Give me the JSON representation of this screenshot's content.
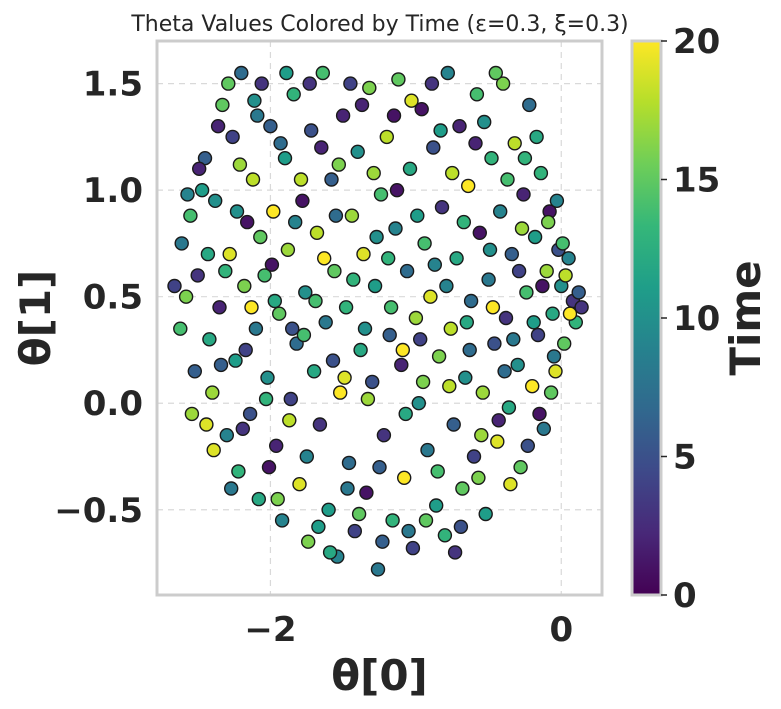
{
  "chart_data": {
    "type": "scatter",
    "title": "Theta Values Colored by Time (ε=0.3, ξ=0.3)",
    "xlabel": "θ[0]",
    "ylabel": "θ[1]",
    "xlim": [
      -2.78,
      0.28
    ],
    "ylim": [
      -0.9,
      1.7
    ],
    "xticks": [
      -2,
      0
    ],
    "xtick_labels": [
      "−2",
      "0"
    ],
    "yticks": [
      -0.5,
      0.0,
      0.5,
      1.0,
      1.5
    ],
    "ytick_labels": [
      "−0.5",
      "0.0",
      "0.5",
      "1.0",
      "1.5"
    ],
    "grid": true,
    "colorbar": {
      "label": "Time",
      "range": [
        0,
        20
      ],
      "ticks": [
        0,
        5,
        10,
        15,
        20
      ],
      "tick_labels": [
        "0",
        "5",
        "10",
        "15",
        "20"
      ],
      "colormap": "viridis",
      "stops": [
        "#440154",
        "#482878",
        "#3e4989",
        "#31688e",
        "#26828e",
        "#1f9e89",
        "#35b779",
        "#6ece58",
        "#b5de2b",
        "#fde725"
      ]
    },
    "marker": {
      "edge_color": "#1a1a1a"
    },
    "points": [
      {
        "x": -2.61,
        "y": 0.75,
        "t": 8
      },
      {
        "x": -2.55,
        "y": 0.88,
        "t": 14
      },
      {
        "x": -2.5,
        "y": 0.6,
        "t": 3
      },
      {
        "x": -2.45,
        "y": 1.15,
        "t": 6
      },
      {
        "x": -2.42,
        "y": 0.3,
        "t": 12
      },
      {
        "x": -2.4,
        "y": 0.05,
        "t": 17
      },
      {
        "x": -2.38,
        "y": 0.95,
        "t": 10
      },
      {
        "x": -2.35,
        "y": 0.45,
        "t": 2
      },
      {
        "x": -2.33,
        "y": 1.4,
        "t": 15
      },
      {
        "x": -2.3,
        "y": -0.15,
        "t": 9
      },
      {
        "x": -2.28,
        "y": 0.7,
        "t": 19
      },
      {
        "x": -2.26,
        "y": 1.25,
        "t": 4
      },
      {
        "x": -2.24,
        "y": 0.2,
        "t": 11
      },
      {
        "x": -2.22,
        "y": -0.32,
        "t": 13
      },
      {
        "x": -2.2,
        "y": 1.55,
        "t": 7
      },
      {
        "x": -2.18,
        "y": 0.55,
        "t": 16
      },
      {
        "x": -2.16,
        "y": 0.85,
        "t": 1
      },
      {
        "x": -2.14,
        "y": -0.05,
        "t": 5
      },
      {
        "x": -2.12,
        "y": 1.05,
        "t": 18
      },
      {
        "x": -2.1,
        "y": 0.35,
        "t": 8
      },
      {
        "x": -2.08,
        "y": -0.45,
        "t": 12
      },
      {
        "x": -2.06,
        "y": 1.5,
        "t": 3
      },
      {
        "x": -2.04,
        "y": 0.6,
        "t": 14
      },
      {
        "x": -2.02,
        "y": 0.12,
        "t": 10
      },
      {
        "x": -2.0,
        "y": 1.3,
        "t": 6
      },
      {
        "x": -1.98,
        "y": 0.9,
        "t": 20
      },
      {
        "x": -1.96,
        "y": -0.2,
        "t": 2
      },
      {
        "x": -1.94,
        "y": 0.42,
        "t": 15
      },
      {
        "x": -1.92,
        "y": -0.55,
        "t": 9
      },
      {
        "x": -1.9,
        "y": 1.15,
        "t": 11
      },
      {
        "x": -1.88,
        "y": 0.72,
        "t": 17
      },
      {
        "x": -1.86,
        "y": 0.02,
        "t": 4
      },
      {
        "x": -1.84,
        "y": 1.45,
        "t": 13
      },
      {
        "x": -1.82,
        "y": 0.28,
        "t": 7
      },
      {
        "x": -1.8,
        "y": -0.38,
        "t": 19
      },
      {
        "x": -1.78,
        "y": 0.95,
        "t": 1
      },
      {
        "x": -1.76,
        "y": 0.52,
        "t": 10
      },
      {
        "x": -1.74,
        "y": -0.65,
        "t": 16
      },
      {
        "x": -1.72,
        "y": 1.28,
        "t": 5
      },
      {
        "x": -1.7,
        "y": 0.15,
        "t": 12
      },
      {
        "x": -1.68,
        "y": 0.8,
        "t": 18
      },
      {
        "x": -1.66,
        "y": -0.1,
        "t": 3
      },
      {
        "x": -1.64,
        "y": 1.55,
        "t": 14
      },
      {
        "x": -1.62,
        "y": 0.38,
        "t": 8
      },
      {
        "x": -1.6,
        "y": -0.5,
        "t": 11
      },
      {
        "x": -1.58,
        "y": 1.05,
        "t": 6
      },
      {
        "x": -1.56,
        "y": 0.62,
        "t": 15
      },
      {
        "x": -1.54,
        "y": -0.72,
        "t": 9
      },
      {
        "x": -1.52,
        "y": 0.05,
        "t": 20
      },
      {
        "x": -1.5,
        "y": 1.35,
        "t": 2
      },
      {
        "x": -1.48,
        "y": 0.45,
        "t": 13
      },
      {
        "x": -1.46,
        "y": -0.28,
        "t": 7
      },
      {
        "x": -1.44,
        "y": 0.88,
        "t": 17
      },
      {
        "x": -1.42,
        "y": -0.6,
        "t": 4
      },
      {
        "x": -1.4,
        "y": 1.18,
        "t": 10
      },
      {
        "x": -1.38,
        "y": 0.25,
        "t": 12
      },
      {
        "x": -1.36,
        "y": 0.7,
        "t": 19
      },
      {
        "x": -1.34,
        "y": -0.42,
        "t": 1
      },
      {
        "x": -1.32,
        "y": 1.48,
        "t": 16
      },
      {
        "x": -1.3,
        "y": 0.1,
        "t": 5
      },
      {
        "x": -1.28,
        "y": 0.55,
        "t": 11
      },
      {
        "x": -1.26,
        "y": -0.78,
        "t": 8
      },
      {
        "x": -1.24,
        "y": 0.98,
        "t": 14
      },
      {
        "x": -1.22,
        "y": -0.15,
        "t": 3
      },
      {
        "x": -1.2,
        "y": 1.25,
        "t": 18
      },
      {
        "x": -1.18,
        "y": 0.32,
        "t": 6
      },
      {
        "x": -1.16,
        "y": -0.55,
        "t": 13
      },
      {
        "x": -1.14,
        "y": 0.82,
        "t": 9
      },
      {
        "x": -1.12,
        "y": 1.52,
        "t": 15
      },
      {
        "x": -1.1,
        "y": 0.18,
        "t": 2
      },
      {
        "x": -1.08,
        "y": -0.35,
        "t": 20
      },
      {
        "x": -1.06,
        "y": 0.62,
        "t": 7
      },
      {
        "x": -1.04,
        "y": 1.1,
        "t": 12
      },
      {
        "x": -1.02,
        "y": -0.68,
        "t": 4
      },
      {
        "x": -1.0,
        "y": 0.4,
        "t": 17
      },
      {
        "x": -0.98,
        "y": 0.0,
        "t": 10
      },
      {
        "x": -0.96,
        "y": 1.38,
        "t": 1
      },
      {
        "x": -0.94,
        "y": 0.75,
        "t": 14
      },
      {
        "x": -0.92,
        "y": -0.22,
        "t": 8
      },
      {
        "x": -0.9,
        "y": 0.5,
        "t": 19
      },
      {
        "x": -0.88,
        "y": 1.2,
        "t": 5
      },
      {
        "x": -0.86,
        "y": -0.48,
        "t": 11
      },
      {
        "x": -0.84,
        "y": 0.22,
        "t": 16
      },
      {
        "x": -0.82,
        "y": 0.92,
        "t": 3
      },
      {
        "x": -0.8,
        "y": -0.62,
        "t": 13
      },
      {
        "x": -0.78,
        "y": 1.55,
        "t": 9
      },
      {
        "x": -0.76,
        "y": 0.35,
        "t": 18
      },
      {
        "x": -0.74,
        "y": -0.1,
        "t": 6
      },
      {
        "x": -0.72,
        "y": 0.68,
        "t": 12
      },
      {
        "x": -0.7,
        "y": 1.3,
        "t": 2
      },
      {
        "x": -0.68,
        "y": -0.4,
        "t": 15
      },
      {
        "x": -0.66,
        "y": 0.12,
        "t": 10
      },
      {
        "x": -0.64,
        "y": 1.02,
        "t": 20
      },
      {
        "x": -0.62,
        "y": 0.48,
        "t": 7
      },
      {
        "x": -0.6,
        "y": -0.25,
        "t": 4
      },
      {
        "x": -0.58,
        "y": 1.45,
        "t": 14
      },
      {
        "x": -0.56,
        "y": 0.8,
        "t": 1
      },
      {
        "x": -0.54,
        "y": 0.05,
        "t": 17
      },
      {
        "x": -0.52,
        "y": -0.52,
        "t": 11
      },
      {
        "x": -0.5,
        "y": 0.58,
        "t": 8
      },
      {
        "x": -0.48,
        "y": 1.15,
        "t": 13
      },
      {
        "x": -0.46,
        "y": 0.28,
        "t": 5
      },
      {
        "x": -0.44,
        "y": -0.18,
        "t": 19
      },
      {
        "x": -0.42,
        "y": 0.9,
        "t": 9
      },
      {
        "x": -0.4,
        "y": 1.5,
        "t": 16
      },
      {
        "x": -0.38,
        "y": 0.4,
        "t": 3
      },
      {
        "x": -0.36,
        "y": -0.02,
        "t": 12
      },
      {
        "x": -0.34,
        "y": 0.7,
        "t": 6
      },
      {
        "x": -0.32,
        "y": 1.22,
        "t": 18
      },
      {
        "x": -0.3,
        "y": 0.18,
        "t": 10
      },
      {
        "x": -0.28,
        "y": -0.3,
        "t": 15
      },
      {
        "x": -0.26,
        "y": 0.98,
        "t": 2
      },
      {
        "x": -0.24,
        "y": 0.52,
        "t": 14
      },
      {
        "x": -0.22,
        "y": 1.4,
        "t": 7
      },
      {
        "x": -0.2,
        "y": 0.08,
        "t": 20
      },
      {
        "x": -0.18,
        "y": 0.78,
        "t": 11
      },
      {
        "x": -0.16,
        "y": 0.32,
        "t": 4
      },
      {
        "x": -0.14,
        "y": 1.08,
        "t": 13
      },
      {
        "x": -0.12,
        "y": -0.12,
        "t": 8
      },
      {
        "x": -0.1,
        "y": 0.62,
        "t": 17
      },
      {
        "x": -0.08,
        "y": 0.9,
        "t": 1
      },
      {
        "x": -0.06,
        "y": 0.42,
        "t": 12
      },
      {
        "x": -0.04,
        "y": 0.15,
        "t": 19
      },
      {
        "x": -0.02,
        "y": 0.72,
        "t": 5
      },
      {
        "x": 0.0,
        "y": 0.55,
        "t": 10
      },
      {
        "x": 0.02,
        "y": 0.28,
        "t": 15
      },
      {
        "x": 0.05,
        "y": 0.68,
        "t": 9
      },
      {
        "x": 0.08,
        "y": 0.48,
        "t": 3
      },
      {
        "x": 0.1,
        "y": 0.38,
        "t": 13
      },
      {
        "x": -2.58,
        "y": 0.5,
        "t": 16
      },
      {
        "x": -2.52,
        "y": 0.15,
        "t": 6
      },
      {
        "x": -2.47,
        "y": 1.0,
        "t": 11
      },
      {
        "x": -2.44,
        "y": -0.1,
        "t": 19
      },
      {
        "x": -2.36,
        "y": 1.3,
        "t": 2
      },
      {
        "x": -2.31,
        "y": 0.62,
        "t": 13
      },
      {
        "x": -2.27,
        "y": -0.4,
        "t": 8
      },
      {
        "x": -2.21,
        "y": 1.12,
        "t": 17
      },
      {
        "x": -2.17,
        "y": 0.25,
        "t": 4
      },
      {
        "x": -2.11,
        "y": 1.42,
        "t": 10
      },
      {
        "x": -2.07,
        "y": 0.78,
        "t": 15
      },
      {
        "x": -2.01,
        "y": -0.3,
        "t": 1
      },
      {
        "x": -1.97,
        "y": 0.48,
        "t": 12
      },
      {
        "x": -1.93,
        "y": 1.22,
        "t": 7
      },
      {
        "x": -1.87,
        "y": -0.08,
        "t": 18
      },
      {
        "x": -1.83,
        "y": 0.85,
        "t": 9
      },
      {
        "x": -1.77,
        "y": 0.32,
        "t": 14
      },
      {
        "x": -1.73,
        "y": 1.5,
        "t": 3
      },
      {
        "x": -1.67,
        "y": -0.58,
        "t": 11
      },
      {
        "x": -1.63,
        "y": 0.68,
        "t": 20
      },
      {
        "x": -1.57,
        "y": 0.2,
        "t": 5
      },
      {
        "x": -1.53,
        "y": 1.12,
        "t": 16
      },
      {
        "x": -1.47,
        "y": -0.4,
        "t": 8
      },
      {
        "x": -1.43,
        "y": 0.58,
        "t": 13
      },
      {
        "x": -1.37,
        "y": 1.4,
        "t": 2
      },
      {
        "x": -1.33,
        "y": 0.02,
        "t": 17
      },
      {
        "x": -1.27,
        "y": 0.78,
        "t": 10
      },
      {
        "x": -1.23,
        "y": -0.65,
        "t": 6
      },
      {
        "x": -1.17,
        "y": 0.45,
        "t": 14
      },
      {
        "x": -1.13,
        "y": 1.0,
        "t": 1
      },
      {
        "x": -1.07,
        "y": -0.05,
        "t": 12
      },
      {
        "x": -1.03,
        "y": 1.42,
        "t": 19
      },
      {
        "x": -0.97,
        "y": 0.3,
        "t": 4
      },
      {
        "x": -0.93,
        "y": -0.55,
        "t": 15
      },
      {
        "x": -0.87,
        "y": 0.65,
        "t": 9
      },
      {
        "x": -0.83,
        "y": 1.28,
        "t": 11
      },
      {
        "x": -0.77,
        "y": 0.08,
        "t": 18
      },
      {
        "x": -0.73,
        "y": -0.7,
        "t": 3
      },
      {
        "x": -0.67,
        "y": 0.85,
        "t": 13
      },
      {
        "x": -0.63,
        "y": 0.25,
        "t": 7
      },
      {
        "x": -0.57,
        "y": -0.35,
        "t": 16
      },
      {
        "x": -0.53,
        "y": 1.32,
        "t": 10
      },
      {
        "x": -0.47,
        "y": 0.45,
        "t": 20
      },
      {
        "x": -0.43,
        "y": -0.08,
        "t": 2
      },
      {
        "x": -0.37,
        "y": 1.05,
        "t": 14
      },
      {
        "x": -0.33,
        "y": 0.3,
        "t": 8
      },
      {
        "x": -0.27,
        "y": 0.82,
        "t": 17
      },
      {
        "x": -0.23,
        "y": -0.2,
        "t": 5
      },
      {
        "x": -0.17,
        "y": 1.25,
        "t": 12
      },
      {
        "x": -0.13,
        "y": 0.55,
        "t": 1
      },
      {
        "x": -0.07,
        "y": 0.05,
        "t": 15
      },
      {
        "x": -0.03,
        "y": 0.95,
        "t": 9
      },
      {
        "x": 0.03,
        "y": 0.6,
        "t": 18
      },
      {
        "x": 0.12,
        "y": 0.52,
        "t": 6
      },
      {
        "x": -2.66,
        "y": 0.55,
        "t": 4
      },
      {
        "x": -2.62,
        "y": 0.35,
        "t": 14
      },
      {
        "x": -2.57,
        "y": 0.98,
        "t": 9
      },
      {
        "x": -2.54,
        "y": -0.05,
        "t": 17
      },
      {
        "x": -2.49,
        "y": 1.1,
        "t": 2
      },
      {
        "x": -2.43,
        "y": 0.7,
        "t": 12
      },
      {
        "x": -2.39,
        "y": -0.22,
        "t": 19
      },
      {
        "x": -2.34,
        "y": 0.18,
        "t": 6
      },
      {
        "x": -2.29,
        "y": 1.5,
        "t": 15
      },
      {
        "x": -2.23,
        "y": 0.9,
        "t": 10
      },
      {
        "x": -2.19,
        "y": -0.12,
        "t": 3
      },
      {
        "x": -2.13,
        "y": 0.45,
        "t": 20
      },
      {
        "x": -2.09,
        "y": 1.35,
        "t": 8
      },
      {
        "x": -2.03,
        "y": 0.02,
        "t": 13
      },
      {
        "x": -1.99,
        "y": 0.65,
        "t": 1
      },
      {
        "x": -1.95,
        "y": -0.45,
        "t": 16
      },
      {
        "x": -1.89,
        "y": 1.55,
        "t": 11
      },
      {
        "x": -1.85,
        "y": 0.35,
        "t": 5
      },
      {
        "x": -1.79,
        "y": 1.05,
        "t": 18
      },
      {
        "x": -1.75,
        "y": -0.25,
        "t": 9
      },
      {
        "x": -1.69,
        "y": 0.48,
        "t": 14
      },
      {
        "x": -1.65,
        "y": 1.2,
        "t": 2
      },
      {
        "x": -1.59,
        "y": -0.7,
        "t": 12
      },
      {
        "x": -1.55,
        "y": 0.88,
        "t": 7
      },
      {
        "x": -1.49,
        "y": 0.12,
        "t": 19
      },
      {
        "x": -1.45,
        "y": 1.5,
        "t": 4
      },
      {
        "x": -1.39,
        "y": -0.52,
        "t": 15
      },
      {
        "x": -1.35,
        "y": 0.35,
        "t": 10
      },
      {
        "x": -1.29,
        "y": 1.08,
        "t": 17
      },
      {
        "x": -1.25,
        "y": -0.3,
        "t": 6
      },
      {
        "x": -1.19,
        "y": 0.68,
        "t": 13
      },
      {
        "x": -1.15,
        "y": 1.35,
        "t": 1
      },
      {
        "x": -1.09,
        "y": 0.25,
        "t": 20
      },
      {
        "x": -1.05,
        "y": -0.6,
        "t": 8
      },
      {
        "x": -0.99,
        "y": 0.88,
        "t": 11
      },
      {
        "x": -0.95,
        "y": 0.1,
        "t": 16
      },
      {
        "x": -0.89,
        "y": 1.5,
        "t": 3
      },
      {
        "x": -0.85,
        "y": -0.32,
        "t": 14
      },
      {
        "x": -0.79,
        "y": 0.55,
        "t": 9
      },
      {
        "x": -0.75,
        "y": 1.08,
        "t": 18
      },
      {
        "x": -0.69,
        "y": -0.58,
        "t": 5
      },
      {
        "x": -0.65,
        "y": 0.38,
        "t": 12
      },
      {
        "x": -0.59,
        "y": 1.22,
        "t": 2
      },
      {
        "x": -0.55,
        "y": -0.15,
        "t": 17
      },
      {
        "x": -0.49,
        "y": 0.72,
        "t": 10
      },
      {
        "x": -0.45,
        "y": 1.55,
        "t": 15
      },
      {
        "x": -0.39,
        "y": 0.15,
        "t": 7
      },
      {
        "x": -0.35,
        "y": -0.38,
        "t": 19
      },
      {
        "x": -0.29,
        "y": 0.62,
        "t": 4
      },
      {
        "x": -0.25,
        "y": 1.15,
        "t": 13
      },
      {
        "x": -0.19,
        "y": 0.38,
        "t": 11
      },
      {
        "x": -0.15,
        "y": -0.05,
        "t": 1
      },
      {
        "x": -0.09,
        "y": 0.85,
        "t": 16
      },
      {
        "x": -0.05,
        "y": 0.22,
        "t": 8
      },
      {
        "x": 0.01,
        "y": 0.75,
        "t": 14
      },
      {
        "x": 0.06,
        "y": 0.42,
        "t": 20
      },
      {
        "x": 0.14,
        "y": 0.45,
        "t": 3
      }
    ]
  }
}
